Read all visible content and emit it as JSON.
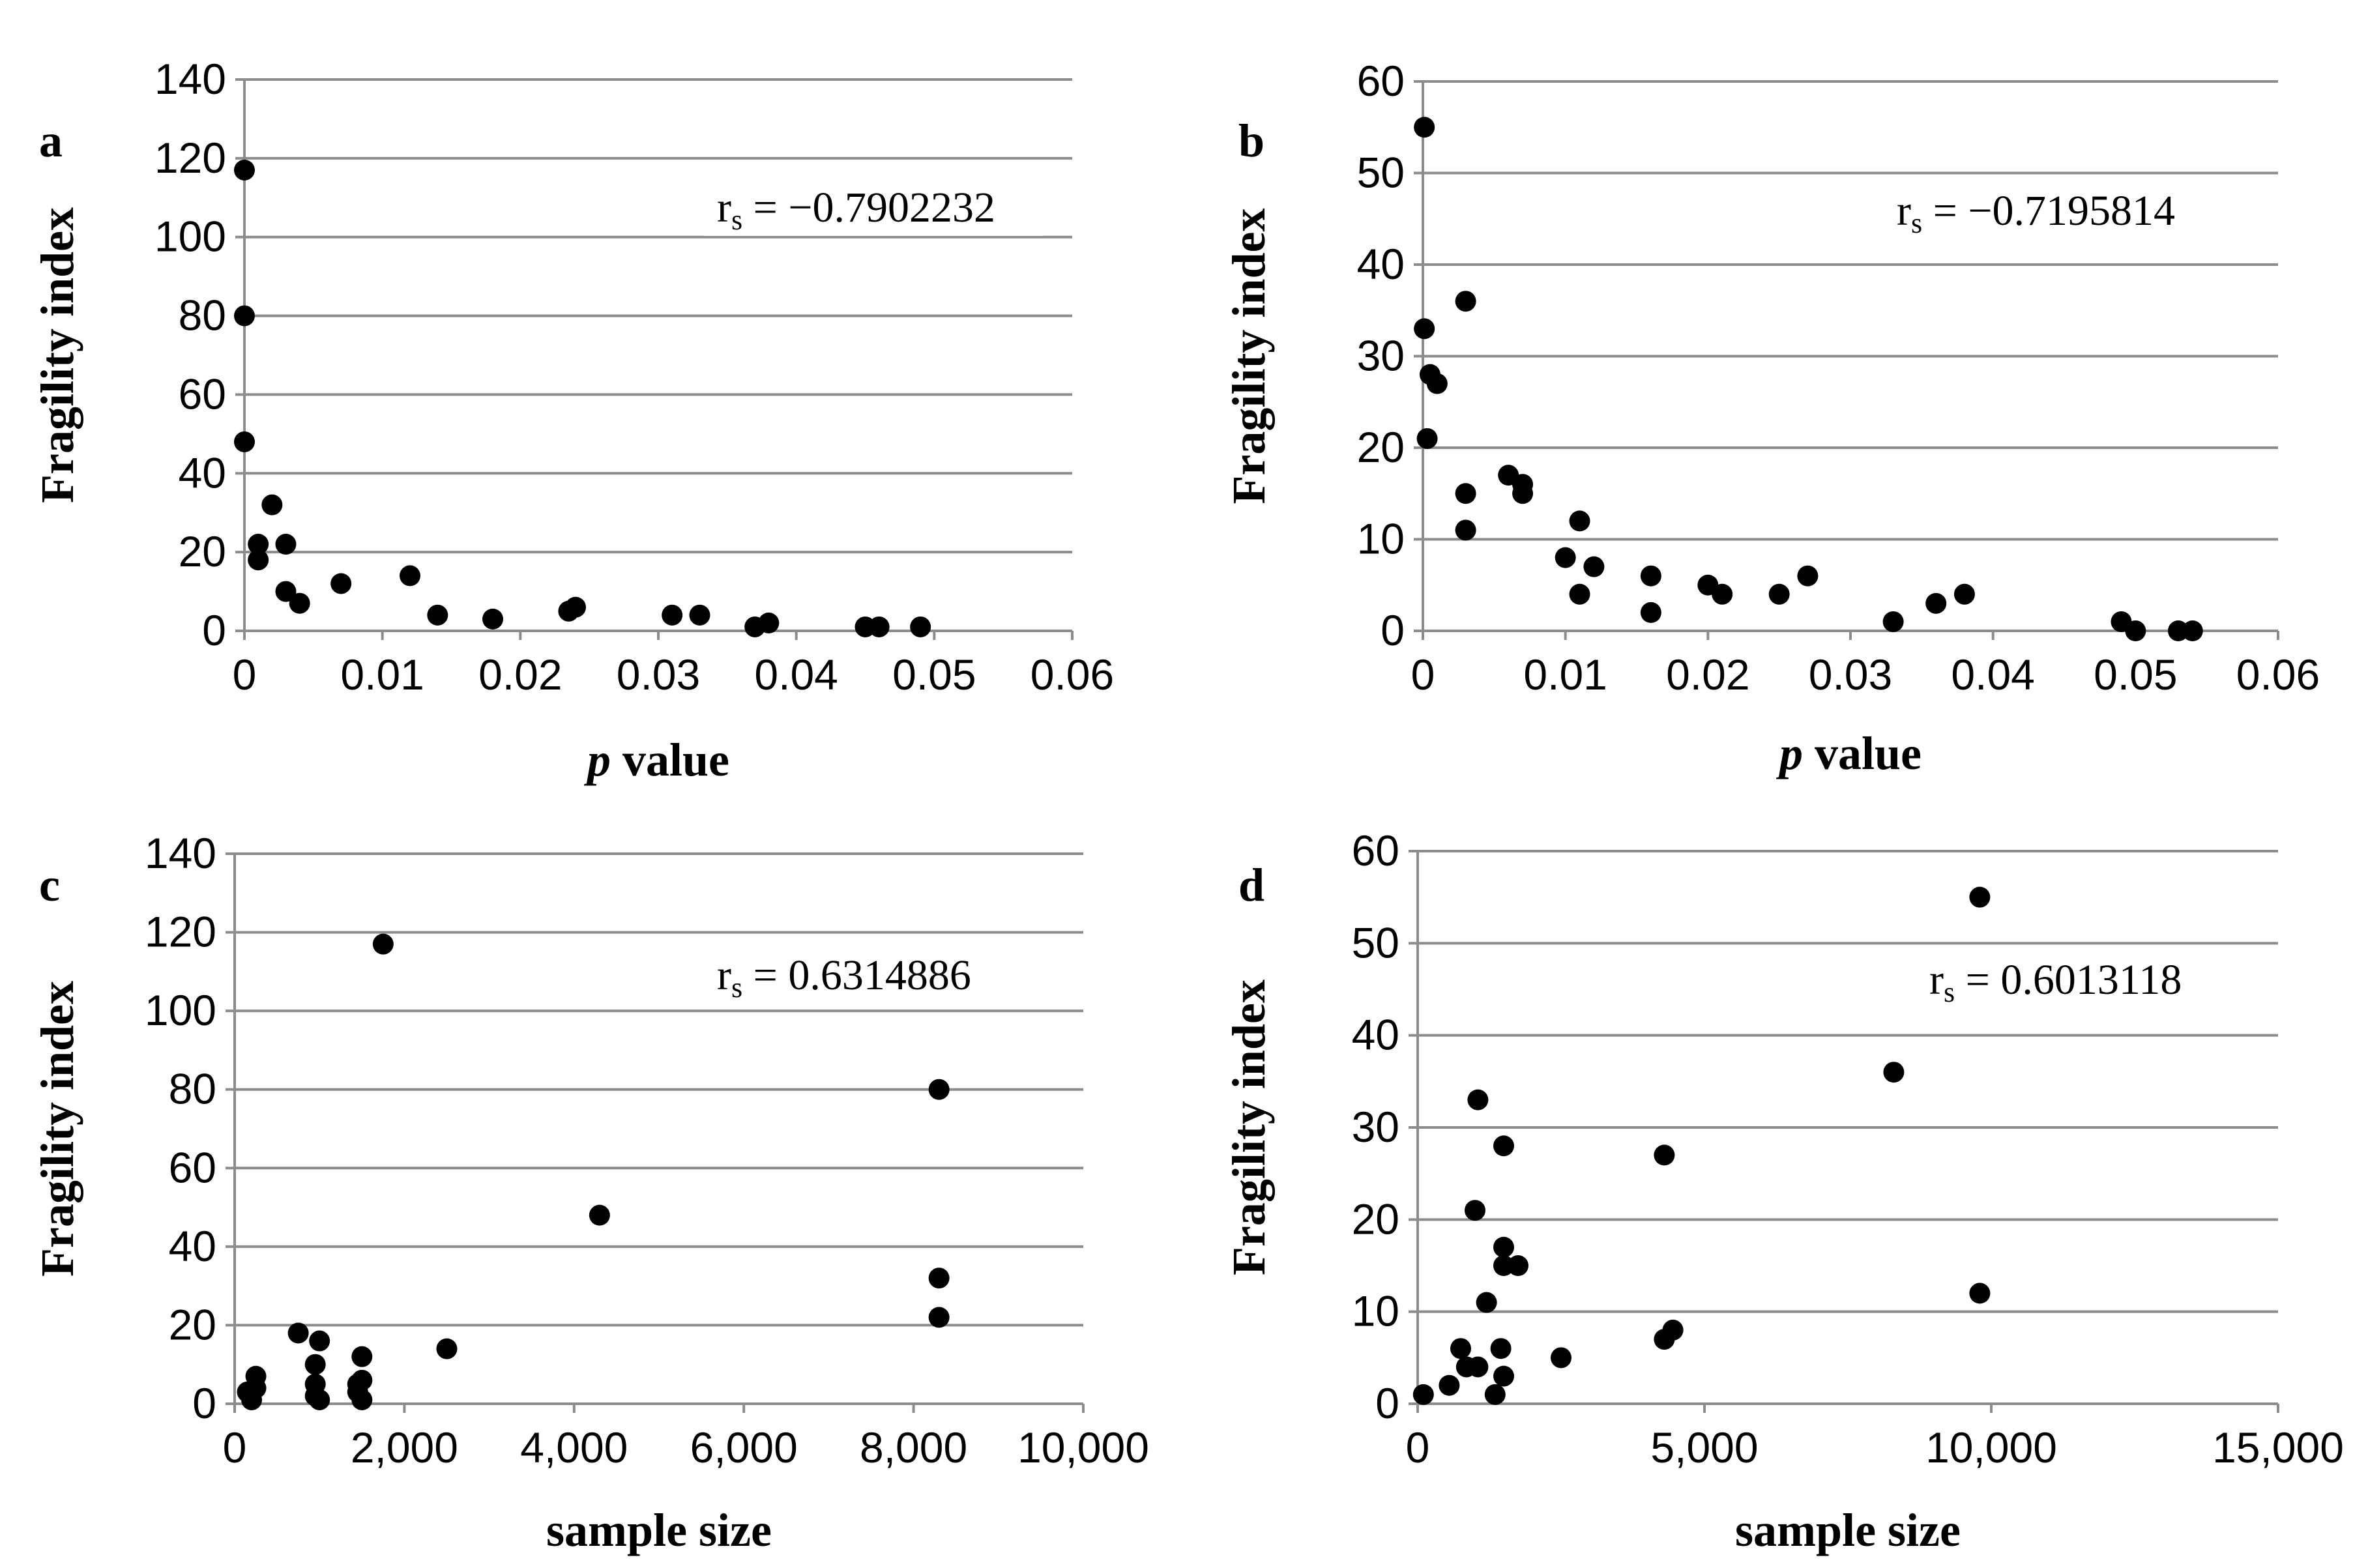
{
  "chart_data": [
    {
      "type": "scatter",
      "panel_label": "a",
      "xlabel_italic": "p",
      "xlabel_rest": " value",
      "ylabel": "Fragility index",
      "annotation_r": "r",
      "annotation_sub": "s",
      "annotation_value": " = −0.7902232",
      "xlim": [
        0,
        0.06
      ],
      "ylim": [
        0,
        140
      ],
      "xticks": [
        0,
        0.01,
        0.02,
        0.03,
        0.04,
        0.05,
        0.06
      ],
      "xtick_labels": [
        "0",
        "0.01",
        "0.02",
        "0.03",
        "0.04",
        "0.05",
        "0.06"
      ],
      "yticks": [
        0,
        20,
        40,
        60,
        80,
        100,
        120,
        140
      ],
      "ytick_labels": [
        "0",
        "20",
        "40",
        "60",
        "80",
        "100",
        "120",
        "140"
      ],
      "grid": true,
      "points": [
        [
          0.0,
          117
        ],
        [
          0.0,
          80
        ],
        [
          0.0,
          48
        ],
        [
          0.001,
          22
        ],
        [
          0.001,
          18
        ],
        [
          0.002,
          32
        ],
        [
          0.003,
          22
        ],
        [
          0.003,
          10
        ],
        [
          0.004,
          7
        ],
        [
          0.007,
          12
        ],
        [
          0.012,
          14
        ],
        [
          0.014,
          4
        ],
        [
          0.018,
          3
        ],
        [
          0.0235,
          5
        ],
        [
          0.024,
          6
        ],
        [
          0.031,
          4
        ],
        [
          0.033,
          4
        ],
        [
          0.037,
          1
        ],
        [
          0.038,
          2
        ],
        [
          0.045,
          1
        ],
        [
          0.046,
          1
        ],
        [
          0.049,
          1
        ]
      ]
    },
    {
      "type": "scatter",
      "panel_label": "b",
      "xlabel_italic": "p",
      "xlabel_rest": " value",
      "ylabel": "Fragility index",
      "annotation_r": "r",
      "annotation_sub": "s",
      "annotation_value": " = −0.7195814",
      "xlim": [
        0,
        0.06
      ],
      "ylim": [
        0,
        60
      ],
      "xticks": [
        0,
        0.01,
        0.02,
        0.03,
        0.04,
        0.05,
        0.06
      ],
      "xtick_labels": [
        "0",
        "0.01",
        "0.02",
        "0.03",
        "0.04",
        "0.05",
        "0.06"
      ],
      "yticks": [
        0,
        10,
        20,
        30,
        40,
        50,
        60
      ],
      "ytick_labels": [
        "0",
        "10",
        "20",
        "30",
        "40",
        "50",
        "60"
      ],
      "grid": true,
      "points": [
        [
          0.0001,
          55
        ],
        [
          0.0001,
          33
        ],
        [
          0.0005,
          28
        ],
        [
          0.001,
          27
        ],
        [
          0.0003,
          21
        ],
        [
          0.003,
          36
        ],
        [
          0.003,
          15
        ],
        [
          0.003,
          11
        ],
        [
          0.006,
          17
        ],
        [
          0.007,
          16
        ],
        [
          0.007,
          15
        ],
        [
          0.01,
          8
        ],
        [
          0.011,
          12
        ],
        [
          0.011,
          4
        ],
        [
          0.012,
          7
        ],
        [
          0.016,
          6
        ],
        [
          0.016,
          2
        ],
        [
          0.02,
          5
        ],
        [
          0.021,
          4
        ],
        [
          0.025,
          4
        ],
        [
          0.027,
          6
        ],
        [
          0.033,
          1
        ],
        [
          0.036,
          3
        ],
        [
          0.038,
          4
        ],
        [
          0.049,
          1
        ],
        [
          0.05,
          0
        ],
        [
          0.053,
          0
        ],
        [
          0.054,
          0
        ]
      ]
    },
    {
      "type": "scatter",
      "panel_label": "c",
      "xlabel": "sample size",
      "ylabel": "Fragility index",
      "annotation_r": "r",
      "annotation_sub": "s",
      "annotation_value": " = 0.6314886",
      "xlim": [
        0,
        10000
      ],
      "ylim": [
        0,
        140
      ],
      "xticks": [
        0,
        2000,
        4000,
        6000,
        8000,
        10000
      ],
      "xtick_labels": [
        "0",
        "2,000",
        "4,000",
        "6,000",
        "8,000",
        "10,000"
      ],
      "yticks": [
        0,
        20,
        40,
        60,
        80,
        100,
        120,
        140
      ],
      "ytick_labels": [
        "0",
        "20",
        "40",
        "60",
        "80",
        "100",
        "120",
        "140"
      ],
      "grid": true,
      "points": [
        [
          1750,
          117
        ],
        [
          8300,
          80
        ],
        [
          4300,
          48
        ],
        [
          8300,
          32
        ],
        [
          8300,
          22
        ],
        [
          750,
          18
        ],
        [
          1000,
          16
        ],
        [
          2500,
          14
        ],
        [
          1500,
          12
        ],
        [
          950,
          10
        ],
        [
          250,
          7
        ],
        [
          150,
          3
        ],
        [
          200,
          1
        ],
        [
          250,
          4
        ],
        [
          950,
          5
        ],
        [
          950,
          2
        ],
        [
          1000,
          1
        ],
        [
          1450,
          5
        ],
        [
          1450,
          3
        ],
        [
          1500,
          1
        ],
        [
          1500,
          6
        ]
      ]
    },
    {
      "type": "scatter",
      "panel_label": "d",
      "xlabel": "sample size",
      "ylabel": "Fragility index",
      "annotation_r": "r",
      "annotation_sub": "s",
      "annotation_value": " = 0.6013118",
      "xlim": [
        0,
        15000
      ],
      "ylim": [
        0,
        60
      ],
      "xticks": [
        0,
        5000,
        10000,
        15000
      ],
      "xtick_labels": [
        "0",
        "5,000",
        "10,000",
        "15,000"
      ],
      "yticks": [
        0,
        10,
        20,
        30,
        40,
        50,
        60
      ],
      "ytick_labels": [
        "0",
        "10",
        "20",
        "30",
        "40",
        "50",
        "60"
      ],
      "grid": true,
      "points": [
        [
          9800,
          55
        ],
        [
          8300,
          36
        ],
        [
          1050,
          33
        ],
        [
          1500,
          28
        ],
        [
          4300,
          27
        ],
        [
          1000,
          21
        ],
        [
          1500,
          17
        ],
        [
          1500,
          15
        ],
        [
          1750,
          15
        ],
        [
          9800,
          12
        ],
        [
          1200,
          11
        ],
        [
          4450,
          8
        ],
        [
          4300,
          7
        ],
        [
          750,
          6
        ],
        [
          1450,
          6
        ],
        [
          2500,
          5
        ],
        [
          850,
          4
        ],
        [
          1050,
          4
        ],
        [
          1500,
          3
        ],
        [
          550,
          2
        ],
        [
          100,
          1
        ],
        [
          1350,
          1
        ]
      ]
    }
  ]
}
